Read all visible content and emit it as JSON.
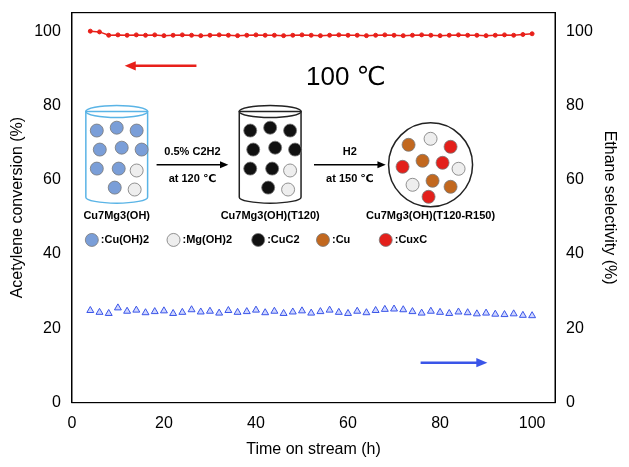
{
  "chart_data": {
    "type": "line",
    "x_label": "Time on stream (h)",
    "y_label": "Acetylene conversion (%)",
    "y2_label": "Ethane selectivity (%)",
    "x": [
      4,
      6,
      8,
      10,
      12,
      14,
      16,
      18,
      20,
      22,
      24,
      26,
      28,
      30,
      32,
      34,
      36,
      38,
      40,
      42,
      44,
      46,
      48,
      50,
      52,
      54,
      56,
      58,
      60,
      62,
      64,
      66,
      68,
      70,
      72,
      74,
      76,
      78,
      80,
      82,
      84,
      86,
      88,
      90,
      92,
      94,
      96,
      98,
      100
    ],
    "series": [
      {
        "name": "Acetylene conversion",
        "color": "#e8201a",
        "marker": "circle",
        "line_style": "solid",
        "values": [
          100,
          99.8,
          98.9,
          99.0,
          98.9,
          99.0,
          98.9,
          99.0,
          98.8,
          98.9,
          99.0,
          98.9,
          98.8,
          98.9,
          99.0,
          98.9,
          98.8,
          98.9,
          99.0,
          98.9,
          98.9,
          98.8,
          98.9,
          99.0,
          98.9,
          98.8,
          98.9,
          99.0,
          98.9,
          98.9,
          98.8,
          98.9,
          99.0,
          98.9,
          98.8,
          98.9,
          99.0,
          98.9,
          98.8,
          98.9,
          99.0,
          98.9,
          98.9,
          98.8,
          98.9,
          99.0,
          98.9,
          99.1,
          99.3
        ]
      },
      {
        "name": "Ethane selectivity",
        "color": "#3a55e8",
        "marker": "triangle",
        "line_style": "none",
        "axis": "y2",
        "values": [
          24.8,
          24.3,
          24.0,
          25.5,
          24.6,
          24.9,
          24.2,
          24.5,
          24.7,
          24.0,
          24.3,
          25.0,
          24.4,
          24.6,
          24.1,
          24.8,
          24.3,
          24.5,
          24.9,
          24.2,
          24.6,
          24.0,
          24.4,
          24.7,
          24.1,
          24.5,
          24.9,
          24.3,
          24.0,
          24.6,
          24.2,
          24.8,
          25.1,
          25.2,
          25.0,
          24.5,
          24.1,
          24.6,
          24.3,
          24.0,
          24.4,
          24.2,
          23.9,
          24.1,
          23.8,
          23.7,
          23.9,
          23.5,
          23.4
        ]
      }
    ],
    "xlim": [
      0,
      105
    ],
    "xticks": [
      0,
      20,
      40,
      60,
      80,
      100
    ],
    "ylim": [
      0,
      105
    ],
    "yticks": [
      0,
      20,
      40,
      60,
      80,
      100
    ],
    "y2lim": [
      0,
      105
    ],
    "y2ticks": [
      0,
      20,
      40,
      60,
      80,
      100
    ],
    "grid": false,
    "annotations": {
      "temperature": "100 ℃",
      "samples": [
        "Cu7Mg3(OH)",
        "Cu7Mg3(OH)(T120)",
        "Cu7Mg3(OH)(T120-R150)"
      ],
      "steps": [
        {
          "reagent": "0.5% C2H2",
          "condition": "at 120 ℃"
        },
        {
          "reagent": "H2",
          "condition": "at 150 ℃"
        }
      ],
      "species": [
        {
          "label": ":Cu(OH)2",
          "color": "#7a9ed8"
        },
        {
          "label": ":Mg(OH)2",
          "color": "#eeeeee"
        },
        {
          "label": ":CuC2",
          "color": "#111111"
        },
        {
          "label": ":Cu",
          "color": "#c2681f"
        },
        {
          "label": ":CuxC",
          "color": "#e3201b"
        }
      ]
    }
  }
}
